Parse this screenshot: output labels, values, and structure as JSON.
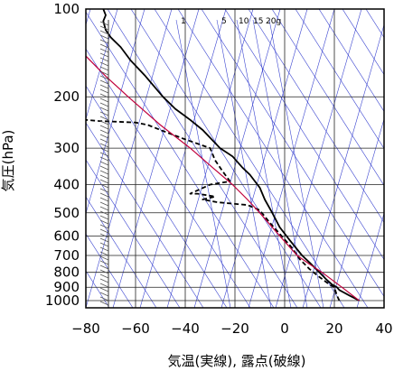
{
  "chart_data": {
    "type": "line",
    "title": "",
    "xlabel": "気温(実線), 露点(破線)",
    "ylabel": "気圧(hPa)",
    "xlim": [
      -80,
      40
    ],
    "ylim": [
      1050,
      100
    ],
    "y_scale": "log",
    "x_ticks": [
      -80,
      -60,
      -40,
      -20,
      0,
      20,
      40
    ],
    "x_tick_labels": [
      "−80",
      "−60",
      "−40",
      "−20",
      "0",
      "20",
      "40"
    ],
    "y_ticks": [
      100,
      200,
      300,
      400,
      500,
      600,
      700,
      800,
      900,
      1000
    ],
    "y_tick_labels": [
      "100",
      "200",
      "300",
      "400",
      "500",
      "600",
      "700",
      "800",
      "900",
      "1000"
    ],
    "grid": true,
    "mixing_ratio_labels": [
      "1",
      "5",
      "10",
      "15",
      "20g"
    ],
    "colors": {
      "temperature": "#000000",
      "dewpoint": "#000000",
      "parcel": "#c0003c",
      "background_lines": "#3a44d0",
      "wind_barbs": "#555555"
    },
    "series": [
      {
        "style": "solid",
        "points": [
          [
            30,
            1000
          ],
          [
            26,
            960
          ],
          [
            22,
            920
          ],
          [
            21,
            900
          ],
          [
            19,
            880
          ],
          [
            17,
            850
          ],
          [
            14,
            800
          ],
          [
            10,
            740
          ],
          [
            7,
            700
          ],
          [
            2,
            620
          ],
          [
            -2,
            560
          ],
          [
            -5,
            500
          ],
          [
            -8,
            450
          ],
          [
            -10,
            410
          ],
          [
            -14,
            370
          ],
          [
            -17,
            350
          ],
          [
            -21,
            320
          ],
          [
            -26,
            300
          ],
          [
            -33,
            260
          ],
          [
            -38,
            240
          ],
          [
            -44,
            220
          ],
          [
            -49,
            200
          ],
          [
            -56,
            170
          ],
          [
            -62,
            150
          ],
          [
            -66,
            135
          ],
          [
            -70,
            125
          ],
          [
            -72,
            118
          ],
          [
            -73,
            110
          ],
          [
            -72,
            105
          ],
          [
            -73,
            100
          ]
        ]
      },
      {
        "style": "dashed",
        "points": [
          [
            22,
            1000
          ],
          [
            21,
            960
          ],
          [
            20,
            900
          ],
          [
            18,
            880
          ],
          [
            14,
            830
          ],
          [
            10,
            780
          ],
          [
            6,
            720
          ],
          [
            3,
            660
          ],
          [
            -2,
            590
          ],
          [
            -6,
            540
          ],
          [
            -10,
            490
          ],
          [
            -15,
            470
          ],
          [
            -27,
            460
          ],
          [
            -33,
            450
          ],
          [
            -28,
            440
          ],
          [
            -35,
            430
          ],
          [
            -38,
            430
          ],
          [
            -30,
            400
          ],
          [
            -22,
            390
          ],
          [
            -25,
            360
          ],
          [
            -28,
            330
          ],
          [
            -30,
            300
          ],
          [
            -40,
            280
          ],
          [
            -50,
            260
          ],
          [
            -55,
            250
          ],
          [
            -60,
            245
          ],
          [
            -75,
            242
          ],
          [
            -80,
            240
          ]
        ]
      },
      {
        "style": "solid",
        "points": [
          [
            30,
            1000
          ],
          [
            23,
            900
          ],
          [
            15,
            800
          ],
          [
            10,
            750
          ],
          [
            5,
            700
          ],
          [
            -2,
            600
          ],
          [
            -10,
            500
          ],
          [
            -15,
            450
          ],
          [
            -21,
            400
          ],
          [
            -29,
            350
          ],
          [
            -38,
            300
          ],
          [
            -50,
            250
          ],
          [
            -63,
            200
          ],
          [
            -72,
            170
          ],
          [
            -80,
            145
          ]
        ]
      }
    ]
  }
}
